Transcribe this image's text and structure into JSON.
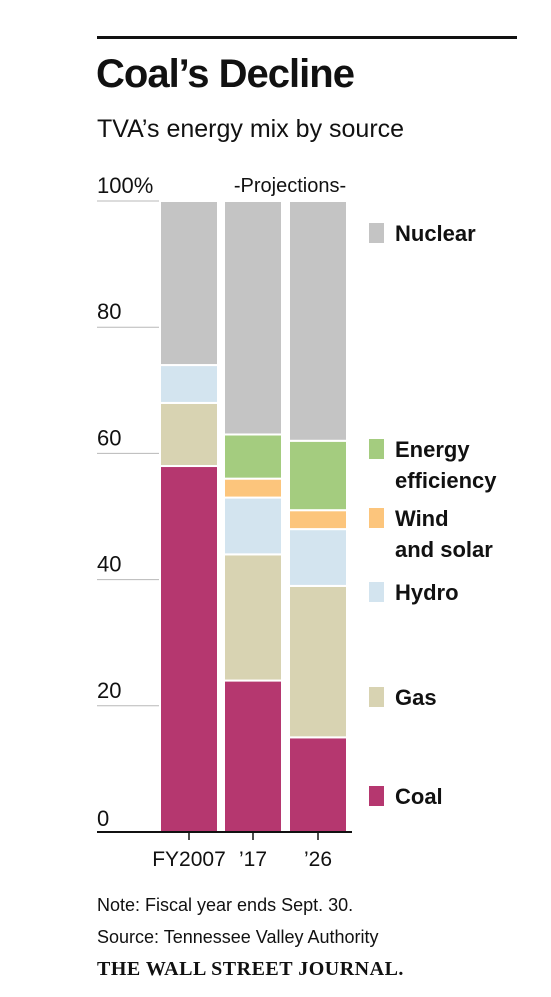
{
  "header": {
    "title": "Coal’s Decline",
    "subtitle": "TVA’s energy mix by source"
  },
  "footer": {
    "note": "Note: Fiscal year ends Sept. 30.",
    "source": "Source: Tennessee Valley Authority",
    "publisher": "THE WALL STREET JOURNAL."
  },
  "chart_data": {
    "type": "bar",
    "stacked": true,
    "title": "Coal’s Decline",
    "subtitle": "TVA’s energy mix by source",
    "annotation": "-Projections-",
    "categories": [
      "FY2007",
      "’17",
      "’26"
    ],
    "ylim": [
      0,
      100
    ],
    "yticks": [
      0,
      20,
      40,
      60,
      80,
      100
    ],
    "ytick_labels": [
      "0",
      "20",
      "40",
      "60",
      "80",
      "100%"
    ],
    "grid": false,
    "legend_placement": "right",
    "series": [
      {
        "name": "Coal",
        "color": "#b5376f",
        "values": [
          58,
          24,
          15
        ]
      },
      {
        "name": "Gas",
        "color": "#d8d3b2",
        "values": [
          10,
          20,
          24
        ]
      },
      {
        "name": "Hydro",
        "color": "#d3e4ef",
        "values": [
          6,
          9,
          9
        ]
      },
      {
        "name": "Wind and solar",
        "color": "#fcc57c",
        "values": [
          0,
          3,
          3
        ]
      },
      {
        "name": "Energy efficiency",
        "color": "#a4cc7f",
        "values": [
          0,
          7,
          11
        ]
      },
      {
        "name": "Nuclear",
        "color": "#c4c4c4",
        "values": [
          26,
          37,
          38
        ]
      }
    ],
    "legend": [
      {
        "lines": [
          "Nuclear"
        ],
        "color": "#c4c4c4"
      },
      {
        "lines": [
          "Energy",
          "efficiency"
        ],
        "color": "#a4cc7f"
      },
      {
        "lines": [
          "Wind",
          "and solar"
        ],
        "color": "#fcc57c"
      },
      {
        "lines": [
          "Hydro"
        ],
        "color": "#d3e4ef"
      },
      {
        "lines": [
          "Gas"
        ],
        "color": "#d8d3b2"
      },
      {
        "lines": [
          "Coal"
        ],
        "color": "#b5376f"
      }
    ]
  }
}
